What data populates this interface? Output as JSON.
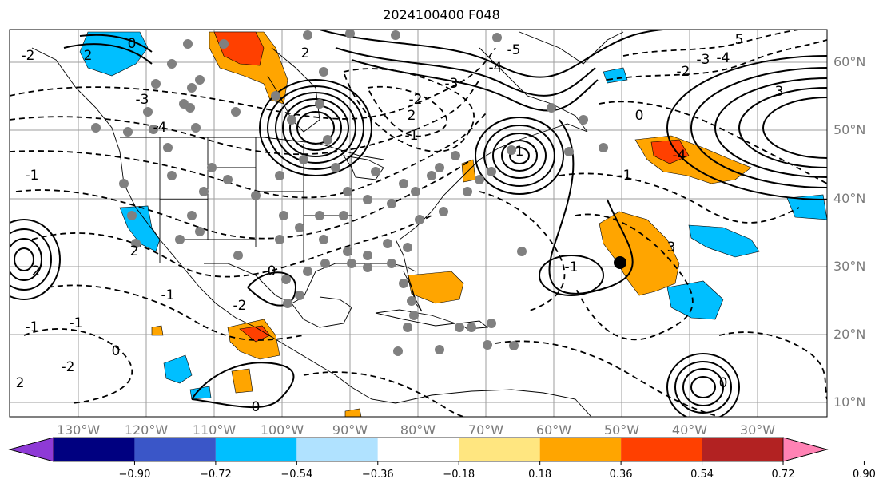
{
  "title": "2024100400 F048",
  "lon_labels": [
    "130°W",
    "120°W",
    "110°W",
    "100°W",
    "90°W",
    "80°W",
    "70°W",
    "60°W",
    "50°W",
    "40°W",
    "30°W"
  ],
  "lat_labels": [
    "60°N",
    "50°N",
    "40°N",
    "30°N",
    "20°N",
    "10°N"
  ],
  "colorbar": {
    "ticks": [
      "−0.90",
      "−0.72",
      "−0.54",
      "−0.36",
      "−0.18",
      "0.18",
      "0.36",
      "0.54",
      "0.72",
      "0.90"
    ],
    "colors": [
      "#8e3ad6",
      "#000080",
      "#3a56c8",
      "#00bfff",
      "#b0e2ff",
      "#ffffff",
      "#ffe680",
      "#ffa500",
      "#ff4000",
      "#b22222",
      "#ff82b4"
    ],
    "extend": "both"
  },
  "contour_labels": [
    "0",
    "2",
    "-2",
    "2",
    "-3",
    "-4",
    "-1",
    "2",
    "-5",
    "-4",
    "-3",
    "-2",
    "2",
    "-1",
    "0",
    "5",
    "-4",
    "-3",
    "-2",
    "3",
    "-4",
    "-1",
    "1",
    "-1",
    "3",
    "0",
    "-2",
    "-1",
    "-1",
    "0",
    "0",
    "0",
    "-1",
    "2",
    "-2",
    "2"
  ],
  "station_marker_color": "#808080",
  "highlight_marker_color": "#000000"
}
